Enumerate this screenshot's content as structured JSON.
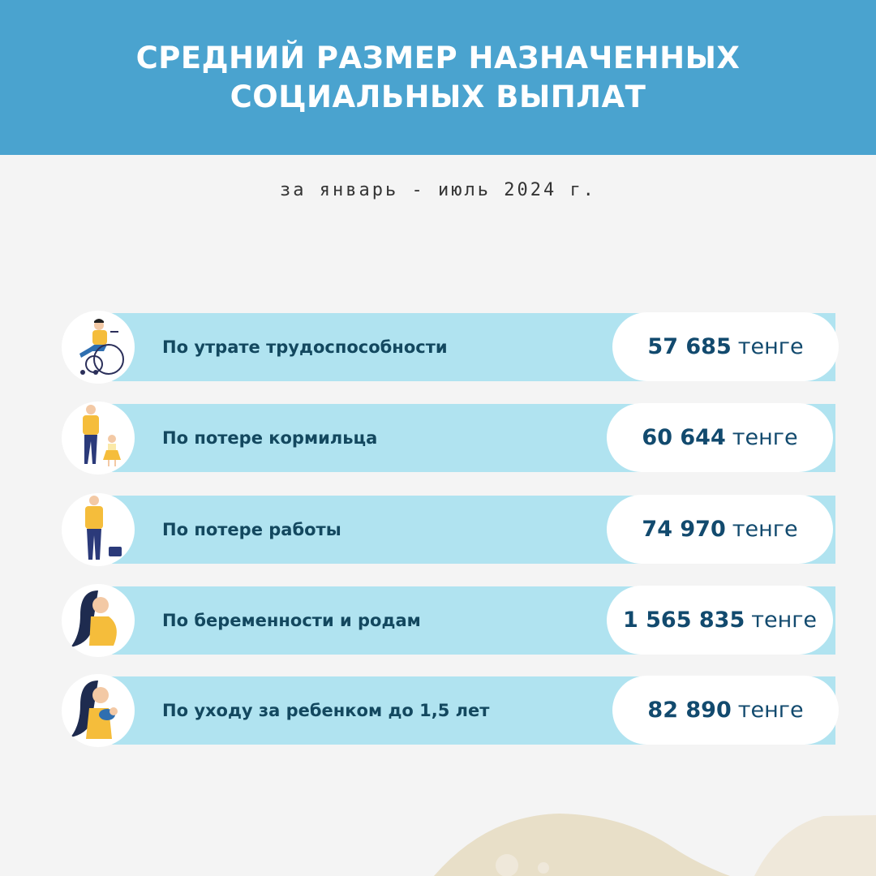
{
  "header": {
    "title_line1": "СРЕДНИЙ РАЗМЕР НАЗНАЧЕННЫХ",
    "title_line2": "СОЦИАЛЬНЫХ ВЫПЛАТ"
  },
  "subtitle": "за январь - июль 2024 г.",
  "colors": {
    "header": "#4aa3cf",
    "bar": "#b0e3f0",
    "text": "#13485f",
    "value": "#124a6e",
    "background": "#f4f4f4"
  },
  "items": [
    {
      "label": "По утрате трудоспособности",
      "amount": "57 685",
      "unit": "тенге",
      "icon": "wheelchair-person-icon"
    },
    {
      "label": "По потере кормильца",
      "amount": "60 644",
      "unit": "тенге",
      "icon": "father-daughter-icon"
    },
    {
      "label": "По потере работы",
      "amount": "74 970",
      "unit": "тенге",
      "icon": "man-briefcase-icon"
    },
    {
      "label": "По беременности и родам",
      "amount": "1 565 835",
      "unit": "тенге",
      "icon": "pregnant-woman-icon"
    },
    {
      "label": "По уходу за ребенком до 1,5 лет",
      "amount": "82 890",
      "unit": "тенге",
      "icon": "mother-baby-icon"
    }
  ]
}
